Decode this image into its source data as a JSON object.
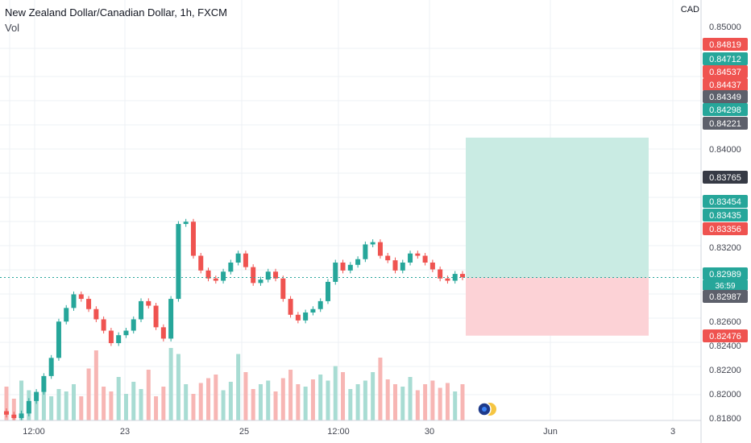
{
  "header": {
    "title": "New Zealand Dollar/Canadian Dollar, 1h, FXCM",
    "indicator": "Vol"
  },
  "axis": {
    "currency": "CAD"
  },
  "colors": {
    "up": "#26a69a",
    "down": "#ef5350",
    "profit_zone": "#c9ebe3",
    "loss_zone": "#fcd2d6",
    "gray_label": "#5d606b"
  },
  "chart_data": {
    "type": "candlestick",
    "symbol": "NZDCAD",
    "timeframe": "1h",
    "y_range": [
      0.8175,
      0.8515
    ],
    "y_ticks": [
      "0.85000",
      "0.84000",
      "0.83200",
      "0.82600",
      "0.82400",
      "0.82200",
      "0.82000",
      "0.81800"
    ],
    "x_ticks": [
      "12:00",
      "23",
      "25",
      "12:00",
      "30",
      "Jun",
      "3"
    ],
    "price_labels": [
      {
        "value": "0.84819",
        "color": "#ef5350"
      },
      {
        "value": "0.84712",
        "color": "#26a69a"
      },
      {
        "value": "0.84537",
        "color": "#ef5350"
      },
      {
        "value": "0.84437",
        "color": "#ef5350"
      },
      {
        "value": "0.84349",
        "color": "#5d606b"
      },
      {
        "value": "0.84298",
        "color": "#26a69a"
      },
      {
        "value": "0.84221",
        "color": "#5d606b"
      },
      {
        "value": "0.83765",
        "color": "#363a45"
      },
      {
        "value": "0.83454",
        "color": "#26a69a"
      },
      {
        "value": "0.83435",
        "color": "#26a69a"
      },
      {
        "value": "0.83356",
        "color": "#ef5350"
      },
      {
        "value": "0.82989",
        "color": "#26a69a"
      },
      {
        "value": "0.82987",
        "color": "#5d606b"
      },
      {
        "value": "0.82476",
        "color": "#ef5350"
      }
    ],
    "current_price": "0.82989",
    "countdown": "36:59",
    "position": {
      "entry": 0.82989,
      "target": 0.84221,
      "stop": 0.82476
    },
    "close_path": [
      [
        0.8178,
        -1
      ],
      [
        0.8175,
        -1
      ],
      [
        0.8179,
        1
      ],
      [
        0.819,
        1
      ],
      [
        0.8198,
        1
      ],
      [
        0.8212,
        1
      ],
      [
        0.8228,
        1
      ],
      [
        0.826,
        1
      ],
      [
        0.8272,
        1
      ],
      [
        0.8284,
        1
      ],
      [
        0.828,
        -1
      ],
      [
        0.8271,
        -1
      ],
      [
        0.8262,
        -1
      ],
      [
        0.8252,
        -1
      ],
      [
        0.8241,
        -1
      ],
      [
        0.8248,
        1
      ],
      [
        0.8252,
        1
      ],
      [
        0.8262,
        1
      ],
      [
        0.8278,
        1
      ],
      [
        0.8274,
        -1
      ],
      [
        0.8255,
        -1
      ],
      [
        0.8245,
        -1
      ],
      [
        0.828,
        1
      ],
      [
        0.8346,
        1
      ],
      [
        0.8348,
        1
      ],
      [
        0.8318,
        -1
      ],
      [
        0.8305,
        -1
      ],
      [
        0.8298,
        -1
      ],
      [
        0.8296,
        -1
      ],
      [
        0.8304,
        1
      ],
      [
        0.8312,
        1
      ],
      [
        0.832,
        1
      ],
      [
        0.8308,
        -1
      ],
      [
        0.8294,
        -1
      ],
      [
        0.8297,
        1
      ],
      [
        0.8304,
        1
      ],
      [
        0.8298,
        -1
      ],
      [
        0.828,
        -1
      ],
      [
        0.8266,
        -1
      ],
      [
        0.8261,
        -1
      ],
      [
        0.8268,
        1
      ],
      [
        0.8271,
        -1
      ],
      [
        0.8278,
        1
      ],
      [
        0.8295,
        1
      ],
      [
        0.8312,
        1
      ],
      [
        0.8305,
        -1
      ],
      [
        0.831,
        1
      ],
      [
        0.8315,
        1
      ],
      [
        0.8328,
        1
      ],
      [
        0.833,
        1
      ],
      [
        0.8318,
        -1
      ],
      [
        0.8314,
        -1
      ],
      [
        0.8305,
        -1
      ],
      [
        0.8312,
        1
      ],
      [
        0.832,
        1
      ],
      [
        0.8318,
        -1
      ],
      [
        0.8312,
        -1
      ],
      [
        0.8306,
        -1
      ],
      [
        0.8298,
        -1
      ],
      [
        0.8296,
        -1
      ],
      [
        0.8302,
        1
      ],
      [
        0.8299,
        -1
      ]
    ],
    "volume_relative": [
      0.28,
      0.18,
      0.33,
      0.25,
      0.22,
      0.31,
      0.2,
      0.26,
      0.24,
      0.3,
      0.2,
      0.43,
      0.58,
      0.28,
      0.24,
      0.36,
      0.22,
      0.32,
      0.26,
      0.42,
      0.2,
      0.28,
      0.6,
      0.55,
      0.3,
      0.22,
      0.31,
      0.35,
      0.38,
      0.25,
      0.32,
      0.55,
      0.4,
      0.26,
      0.3,
      0.33,
      0.24,
      0.35,
      0.42,
      0.3,
      0.28,
      0.34,
      0.38,
      0.33,
      0.45,
      0.4,
      0.26,
      0.3,
      0.33,
      0.4,
      0.52,
      0.34,
      0.3,
      0.28,
      0.36,
      0.25,
      0.3,
      0.33,
      0.27,
      0.31,
      0.24,
      0.3
    ]
  }
}
